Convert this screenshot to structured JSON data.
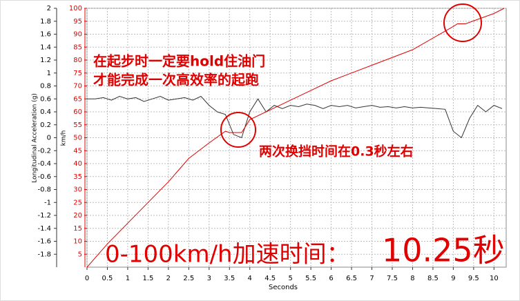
{
  "chart_data": {
    "type": "line",
    "x_label": "Seconds",
    "y_label": "Longitudinal Acceleration (g)",
    "y2_label": "km/h",
    "xlim": [
      0,
      10.3
    ],
    "xticks": [
      0,
      0.5,
      1,
      1.5,
      2,
      2.5,
      3,
      3.5,
      4,
      4.5,
      5,
      5.5,
      6,
      6.5,
      7,
      7.5,
      8,
      8.5,
      9,
      9.5,
      10
    ],
    "ylim": [
      -2,
      2
    ],
    "yticks": [
      2,
      1.8,
      1.6,
      1.4,
      1.2,
      1,
      0.8,
      0.6,
      0.4,
      0.2,
      0,
      -0.2,
      -0.4,
      -0.6,
      -0.8,
      -1,
      -1.2,
      -1.4,
      -1.6,
      -1.8
    ],
    "y2lim": [
      0,
      100
    ],
    "y2ticks": [
      100,
      95,
      90,
      85,
      80,
      75,
      70,
      65,
      60,
      55,
      50,
      45,
      40,
      35,
      30,
      25,
      20,
      15,
      10,
      5
    ],
    "grid": true,
    "series": [
      {
        "color": "#333333",
        "axis": "y",
        "x": [
          0,
          0.2,
          0.4,
          0.6,
          0.8,
          1,
          1.2,
          1.4,
          1.6,
          1.8,
          2,
          2.2,
          2.4,
          2.6,
          2.8,
          3,
          3.2,
          3.4,
          3.6,
          3.8,
          4,
          4.2,
          4.4,
          4.6,
          4.8,
          5,
          5.2,
          5.4,
          5.6,
          5.8,
          6,
          6.2,
          6.4,
          6.6,
          6.8,
          7,
          7.2,
          7.4,
          7.6,
          7.8,
          8,
          8.2,
          8.4,
          8.6,
          8.8,
          9,
          9.2,
          9.4,
          9.6,
          9.8,
          10,
          10.2
        ],
        "values": [
          0.6,
          0.6,
          0.62,
          0.58,
          0.64,
          0.6,
          0.62,
          0.56,
          0.6,
          0.64,
          0.58,
          0.6,
          0.62,
          0.58,
          0.64,
          0.5,
          0.4,
          0.36,
          0.05,
          0,
          0.4,
          0.6,
          0.4,
          0.5,
          0.45,
          0.5,
          0.48,
          0.52,
          0.5,
          0.45,
          0.5,
          0.48,
          0.5,
          0.46,
          0.48,
          0.5,
          0.47,
          0.48,
          0.46,
          0.48,
          0.46,
          0.47,
          0.46,
          0.45,
          0.44,
          0.1,
          0,
          0.3,
          0.5,
          0.4,
          0.5,
          0.45
        ]
      },
      {
        "color": "#e00000",
        "axis": "y2",
        "x": [
          0,
          0.5,
          1,
          1.5,
          2,
          2.5,
          3,
          3.4,
          3.5,
          3.8,
          4,
          5,
          6,
          7,
          8,
          9,
          9.1,
          9.3,
          10,
          10.25
        ],
        "values": [
          0,
          9,
          17,
          25,
          33,
          42,
          48,
          52.5,
          52,
          52,
          57,
          64.5,
          72,
          78,
          84,
          93,
          94,
          94,
          98,
          100
        ]
      }
    ],
    "annotations": [
      "在起步时一定要hold住油门",
      "才能完成一次高效率的起跑",
      "两次换挡时间在0.3秒左右",
      "0-100km/h加速时间：",
      "10.25秒"
    ]
  }
}
